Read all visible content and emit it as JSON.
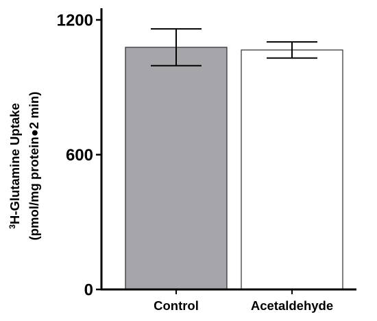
{
  "chart_data": {
    "type": "bar",
    "categories": [
      "Control",
      "Acetaldehyde"
    ],
    "values": [
      1078,
      1066
    ],
    "errors": [
      82,
      36
    ],
    "fills": [
      "#a6a5aa",
      "#ffffff"
    ],
    "ylabel_line1_sup": "3",
    "ylabel_line1": "H-Glutamine Uptake",
    "ylabel_line2": "(pmol/mg protein●2 min)",
    "ylim": [
      0,
      1200
    ],
    "yticks": [
      "0",
      "600",
      "1200"
    ],
    "grid": false
  }
}
